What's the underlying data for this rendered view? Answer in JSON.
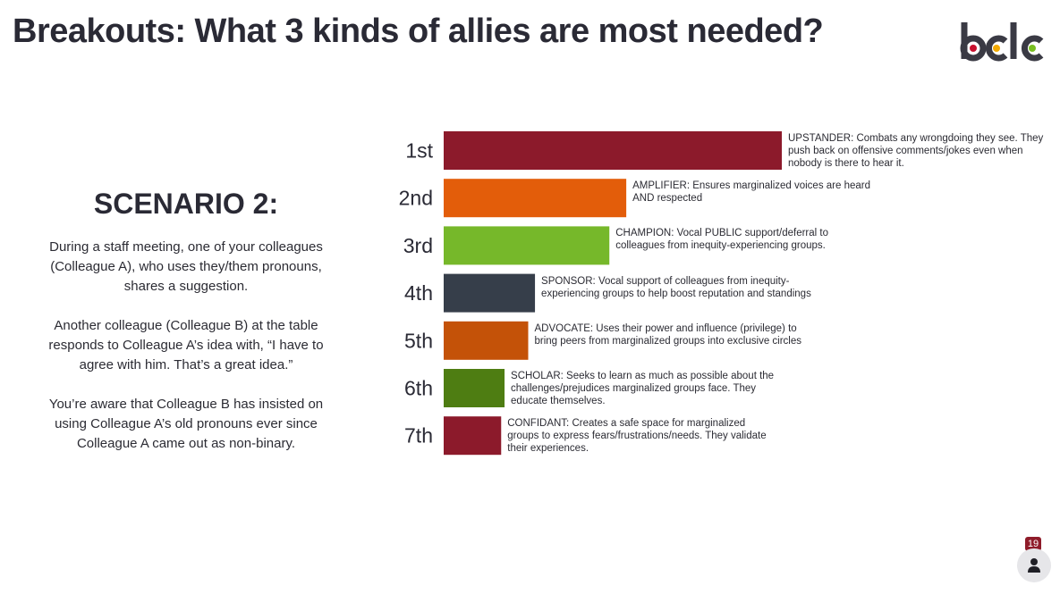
{
  "page": {
    "title": "Breakouts: What 3 kinds of allies are most needed?",
    "logo_text": "bclc"
  },
  "scenario": {
    "heading": "SCENARIO 2:",
    "paragraphs": [
      "During a staff meeting, one of your colleagues (Colleague A), who uses they/them pronouns, shares a suggestion.",
      "Another colleague (Colleague B) at the table responds to Colleague A’s idea with, “I have to agree with him. That’s a great idea.”",
      "You’re aware that Colleague B has insisted on using Colleague A’s old pronouns ever since Colleague A came out as non-binary."
    ]
  },
  "chart_data": {
    "type": "bar",
    "orientation": "horizontal",
    "categories": [
      "1st",
      "2nd",
      "3rd",
      "4th",
      "5th",
      "6th",
      "7th"
    ],
    "values": [
      100,
      54,
      49,
      27,
      25,
      18,
      17
    ],
    "colors": [
      "#8c1a2b",
      "#e35d0a",
      "#76b82a",
      "#363e4a",
      "#c45208",
      "#4e7d12",
      "#8c1a2b"
    ],
    "labels": [
      "UPSTANDER: Combats any wrongdoing they see. They push back on offensive comments/jokes even when nobody is there to hear it.",
      "AMPLIFIER: Ensures marginalized voices are heard AND respected",
      "CHAMPION: Vocal PUBLIC support/deferral to colleagues from inequity-experiencing groups.",
      "SPONSOR: Vocal support of colleagues from inequity-experiencing groups to help boost reputation and standings",
      "ADVOCATE: Uses their power and influence (privilege) to bring peers from marginalized groups into exclusive circles",
      "SCHOLAR: Seeks to learn as much as possible about the challenges/prejudices marginalized groups face. They educate themselves.",
      "CONFIDANT: Creates a safe space for marginalized groups to express fears/frustrations/needs. They validate their experiences."
    ],
    "xlim": [
      0,
      100
    ],
    "grid": false,
    "legend": "none"
  },
  "footer": {
    "slide_number": "19",
    "presenter_icon": "person-icon"
  },
  "logo_colors": {
    "text": "#3a3a44",
    "dot_red": "#c8102e",
    "dot_orange": "#f2a900",
    "dot_green": "#78be20"
  }
}
